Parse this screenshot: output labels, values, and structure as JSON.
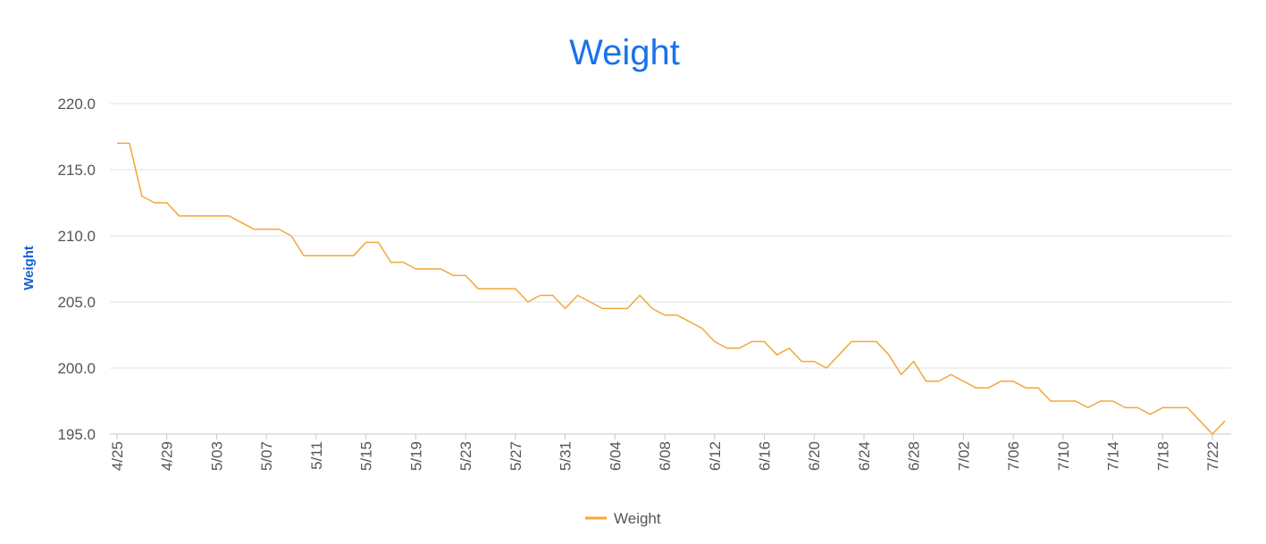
{
  "chart_data": {
    "type": "line",
    "title": "Weight",
    "xlabel": "",
    "ylabel": "Weight",
    "ylim": [
      195,
      220
    ],
    "yticks": [
      "195.0",
      "200.0",
      "205.0",
      "210.0",
      "215.0",
      "220.0"
    ],
    "xtick_labels": [
      "4/25",
      "4/29",
      "5/03",
      "5/07",
      "5/11",
      "5/15",
      "5/19",
      "5/23",
      "5/27",
      "5/31",
      "6/04",
      "6/08",
      "6/12",
      "6/16",
      "6/20",
      "6/24",
      "6/28",
      "7/02",
      "7/06",
      "7/10",
      "7/14",
      "7/18",
      "7/22"
    ],
    "grid": true,
    "legend_position": "bottom",
    "colors": {
      "title": "#1a73e8",
      "ylabel": "#1a5fd0",
      "series": "#f4a638",
      "grid": "#e0e0e0",
      "axis": "#c8c8c8"
    },
    "series": [
      {
        "name": "Weight",
        "x": [
          "4/25",
          "4/26",
          "4/27",
          "4/28",
          "4/29",
          "4/30",
          "5/01",
          "5/02",
          "5/03",
          "5/04",
          "5/05",
          "5/06",
          "5/07",
          "5/08",
          "5/09",
          "5/10",
          "5/11",
          "5/12",
          "5/13",
          "5/14",
          "5/15",
          "5/16",
          "5/17",
          "5/18",
          "5/19",
          "5/20",
          "5/21",
          "5/22",
          "5/23",
          "5/24",
          "5/25",
          "5/26",
          "5/27",
          "5/28",
          "5/29",
          "5/30",
          "5/31",
          "6/01",
          "6/02",
          "6/03",
          "6/04",
          "6/05",
          "6/06",
          "6/07",
          "6/08",
          "6/09",
          "6/10",
          "6/11",
          "6/12",
          "6/13",
          "6/14",
          "6/15",
          "6/16",
          "6/17",
          "6/18",
          "6/19",
          "6/20",
          "6/21",
          "6/22",
          "6/23",
          "6/24",
          "6/25",
          "6/26",
          "6/27",
          "6/28",
          "6/29",
          "6/30",
          "7/01",
          "7/02",
          "7/03",
          "7/04",
          "7/05",
          "7/06",
          "7/07",
          "7/08",
          "7/09",
          "7/10",
          "7/11",
          "7/12",
          "7/13",
          "7/14",
          "7/15",
          "7/16",
          "7/17",
          "7/18",
          "7/19",
          "7/20",
          "7/21",
          "7/22",
          "7/23"
        ],
        "values": [
          217.0,
          217.0,
          213.0,
          212.5,
          212.5,
          211.5,
          211.5,
          211.5,
          211.5,
          211.5,
          211.0,
          210.5,
          210.5,
          210.5,
          210.0,
          208.5,
          208.5,
          208.5,
          208.5,
          208.5,
          209.5,
          209.5,
          208.0,
          208.0,
          207.5,
          207.5,
          207.5,
          207.0,
          207.0,
          206.0,
          206.0,
          206.0,
          206.0,
          205.0,
          205.5,
          205.5,
          204.5,
          205.5,
          205.0,
          204.5,
          204.5,
          204.5,
          205.5,
          204.5,
          204.0,
          204.0,
          203.5,
          203.0,
          202.0,
          201.5,
          201.5,
          202.0,
          202.0,
          201.0,
          201.5,
          200.5,
          200.5,
          200.0,
          201.0,
          202.0,
          202.0,
          202.0,
          201.0,
          199.5,
          200.5,
          199.0,
          199.0,
          199.5,
          199.0,
          198.5,
          198.5,
          199.0,
          199.0,
          198.5,
          198.5,
          197.5,
          197.5,
          197.5,
          197.0,
          197.5,
          197.5,
          197.0,
          197.0,
          196.5,
          197.0,
          197.0,
          197.0,
          196.0,
          195.0,
          196.0
        ]
      }
    ]
  }
}
